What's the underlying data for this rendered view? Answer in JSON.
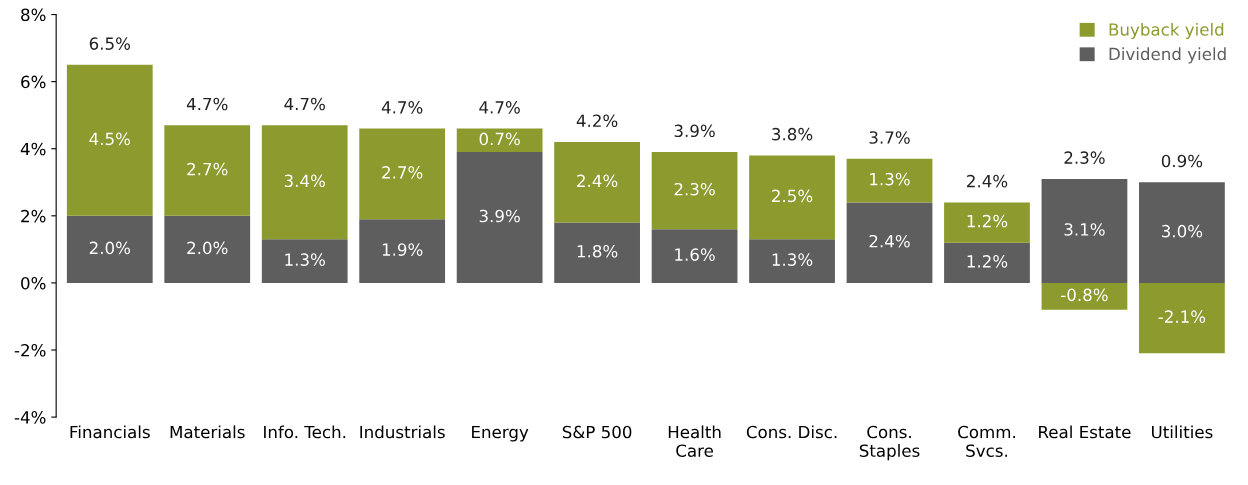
{
  "chart_data": {
    "type": "bar",
    "stacked": true,
    "categories": [
      "Financials",
      "Materials",
      "Info. Tech.",
      "Industrials",
      "Energy",
      "S&P 500",
      "Health\nCare",
      "Cons. Disc.",
      "Cons.\nStaples",
      "Comm.\nSvcs.",
      "Real Estate",
      "Utilities"
    ],
    "series": [
      {
        "name": "Dividend yield",
        "color": "#5e5e5e",
        "values": [
          2.0,
          2.0,
          1.3,
          1.9,
          3.9,
          1.8,
          1.6,
          1.3,
          2.4,
          1.2,
          3.1,
          3.0
        ],
        "value_labels": [
          "2.0%",
          "2.0%",
          "1.3%",
          "1.9%",
          "3.9%",
          "1.8%",
          "1.6%",
          "1.3%",
          "2.4%",
          "1.2%",
          "3.1%",
          "3.0%"
        ]
      },
      {
        "name": "Buyback yield",
        "color": "#8c9a2e",
        "values": [
          4.5,
          2.7,
          3.4,
          2.7,
          0.7,
          2.4,
          2.3,
          2.5,
          1.3,
          1.2,
          -0.8,
          -2.1
        ],
        "value_labels": [
          "4.5%",
          "2.7%",
          "3.4%",
          "2.7%",
          "0.7%",
          "2.4%",
          "2.3%",
          "2.5%",
          "1.3%",
          "1.2%",
          "-0.8%",
          "-2.1%"
        ]
      }
    ],
    "totals": [
      "6.5%",
      "4.7%",
      "4.7%",
      "4.7%",
      "4.7%",
      "4.2%",
      "3.9%",
      "3.8%",
      "3.7%",
      "2.4%",
      "2.3%",
      "0.9%"
    ],
    "ylim": [
      -4,
      8
    ],
    "yticks": [
      {
        "value": -4,
        "label": "-4%"
      },
      {
        "value": -2,
        "label": "-2%"
      },
      {
        "value": 0,
        "label": "0%"
      },
      {
        "value": 2,
        "label": "2%"
      },
      {
        "value": 4,
        "label": "4%"
      },
      {
        "value": 6,
        "label": "6%"
      },
      {
        "value": 8,
        "label": "8%"
      }
    ],
    "legend": "top right",
    "grid": false
  }
}
